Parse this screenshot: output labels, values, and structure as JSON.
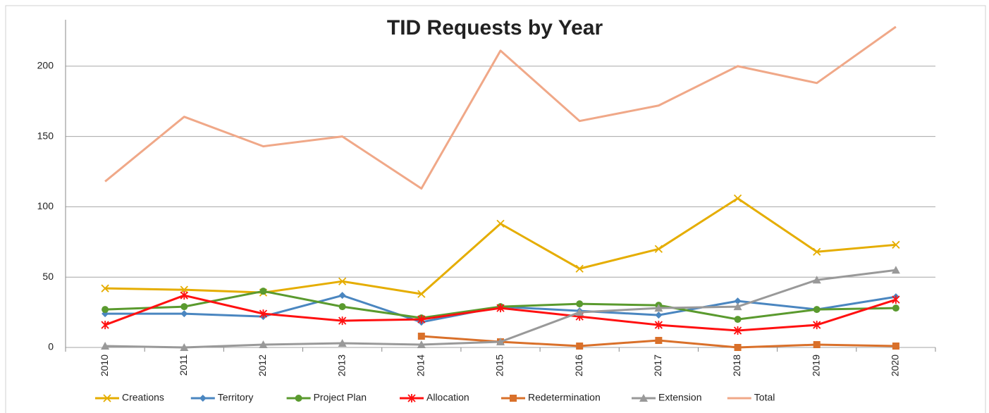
{
  "chart_data": {
    "type": "line",
    "title": "TID Requests by Year",
    "categories": [
      "2010",
      "2011",
      "2012",
      "2013",
      "2014",
      "2015",
      "2016",
      "2017",
      "2018",
      "2019",
      "2020"
    ],
    "ylim": [
      0,
      233
    ],
    "yticks": [
      0,
      50,
      100,
      150,
      200
    ],
    "grid": true,
    "legend": "bottom",
    "series": [
      {
        "name": "Creations",
        "color": "#e5ad00",
        "marker": "x",
        "values": [
          42,
          41,
          39,
          47,
          38,
          88,
          56,
          70,
          106,
          68,
          73
        ]
      },
      {
        "name": "Territory",
        "color": "#4a86c0",
        "marker": "diamond",
        "values": [
          24,
          24,
          22,
          37,
          18,
          29,
          26,
          23,
          33,
          27,
          36
        ]
      },
      {
        "name": "Project Plan",
        "color": "#5a9a2e",
        "marker": "circle",
        "values": [
          27,
          29,
          40,
          29,
          21,
          29,
          31,
          30,
          20,
          27,
          28
        ]
      },
      {
        "name": "Allocation",
        "color": "#ff1010",
        "marker": "asterisk",
        "values": [
          16,
          37,
          24,
          19,
          20,
          28,
          22,
          16,
          12,
          16,
          34
        ]
      },
      {
        "name": "Redetermination",
        "color": "#d9702a",
        "marker": "square",
        "values": [
          null,
          null,
          null,
          null,
          8,
          4,
          1,
          5,
          0,
          2,
          1
        ]
      },
      {
        "name": "Extension",
        "color": "#999999",
        "marker": "triangle",
        "values": [
          1,
          0,
          2,
          3,
          2,
          4,
          25,
          28,
          29,
          48,
          55
        ]
      },
      {
        "name": "Total",
        "color": "#f0a888",
        "marker": "none",
        "values": [
          118,
          164,
          143,
          150,
          113,
          211,
          161,
          172,
          200,
          188,
          228
        ]
      }
    ]
  }
}
